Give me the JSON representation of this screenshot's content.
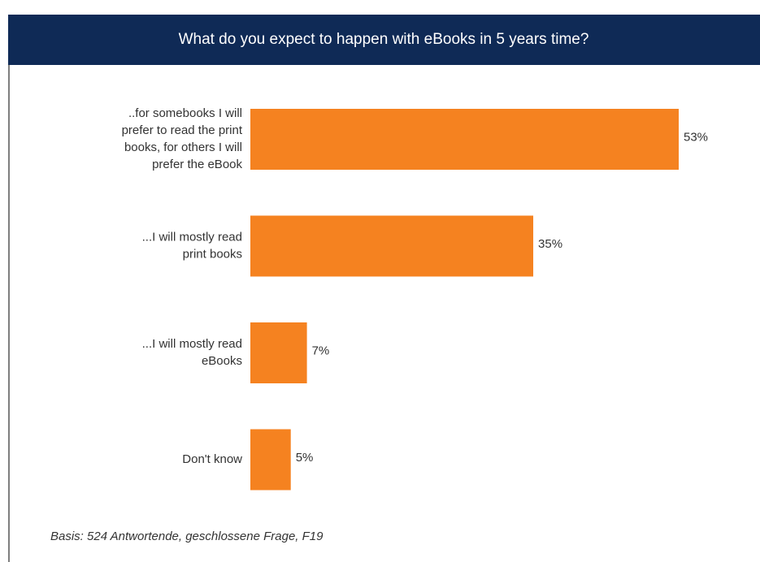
{
  "chart_data": {
    "type": "bar",
    "orientation": "horizontal",
    "title": "What do you expect to happen with eBooks in 5 years time?",
    "categories": [
      "..for somebooks I will\nprefer to read the print\nbooks, for others I will\nprefer the eBook",
      "...I will mostly read\nprint books",
      "...I will mostly read\neBooks",
      "Don't know"
    ],
    "values": [
      53,
      35,
      7,
      5
    ],
    "value_labels": [
      "53%",
      "35%",
      "7%",
      "5%"
    ],
    "color": "#f58220",
    "note": "Basis: 524 Antwortende, geschlossene Frage, F19"
  }
}
